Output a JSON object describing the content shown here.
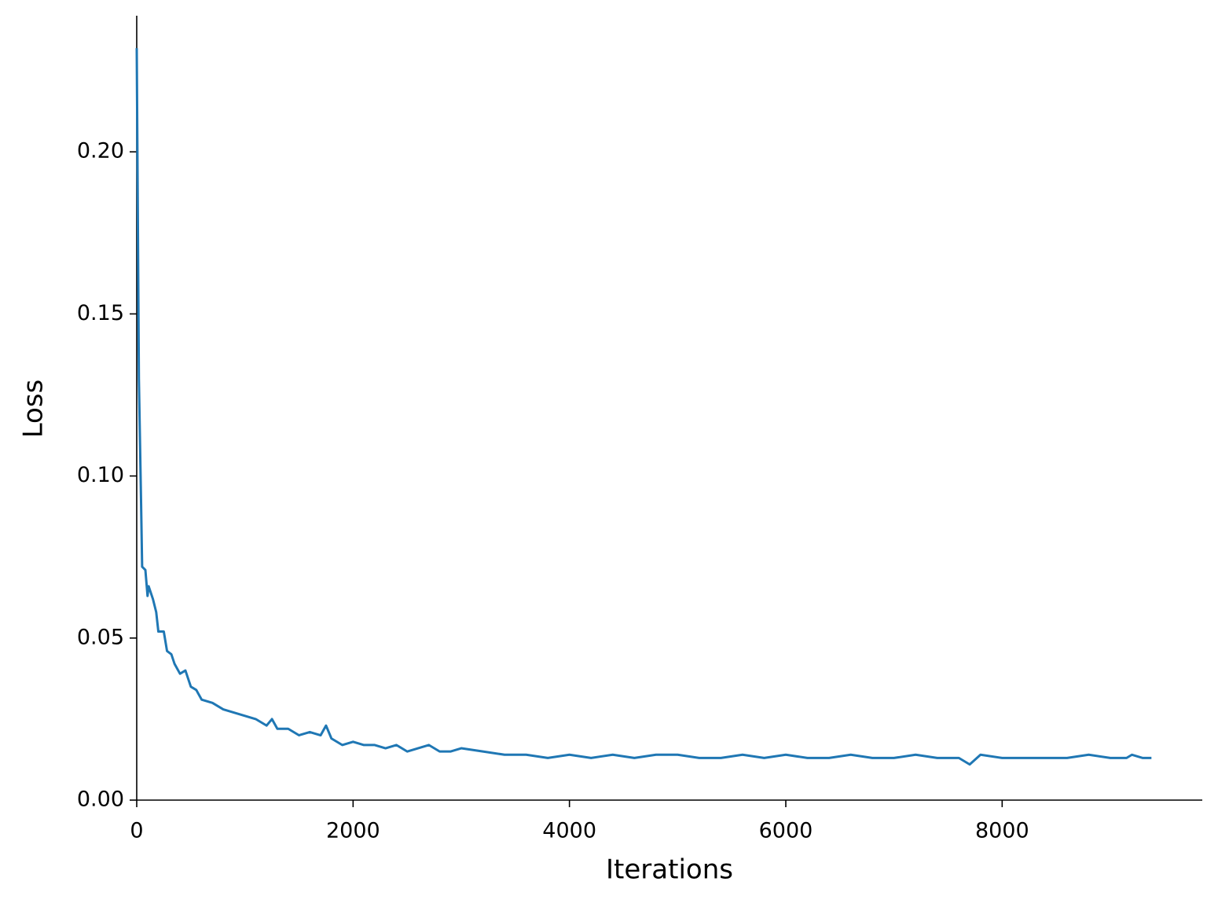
{
  "chart_data": {
    "type": "line",
    "x_label": "Iterations",
    "y_label": "Loss",
    "xlim": [
      0,
      9850
    ],
    "ylim": [
      0,
      0.242
    ],
    "xticks": [
      0,
      2000,
      4000,
      6000,
      8000
    ],
    "yticks": [
      {
        "value": 0,
        "label": "0.00"
      },
      0.05,
      {
        "value": 0.1,
        "label": "0.10"
      },
      0.15,
      {
        "value": 0.2,
        "label": "0.20"
      }
    ],
    "grid": false,
    "series": [
      {
        "name": "Loss",
        "color": "#1f77b4",
        "x": [
          0,
          20,
          40,
          50,
          80,
          100,
          110,
          150,
          180,
          200,
          250,
          280,
          320,
          350,
          400,
          450,
          500,
          550,
          600,
          700,
          800,
          900,
          1000,
          1100,
          1200,
          1250,
          1300,
          1400,
          1500,
          1600,
          1700,
          1750,
          1800,
          1900,
          2000,
          2100,
          2200,
          2300,
          2400,
          2500,
          2600,
          2700,
          2800,
          2900,
          3000,
          3200,
          3400,
          3600,
          3800,
          4000,
          4200,
          4400,
          4600,
          4800,
          5000,
          5200,
          5400,
          5600,
          5800,
          6000,
          6200,
          6400,
          6600,
          6800,
          7000,
          7200,
          7400,
          7600,
          7700,
          7800,
          8000,
          8200,
          8400,
          8600,
          8800,
          9000,
          9150,
          9200,
          9300,
          9380
        ],
        "values": [
          0.232,
          0.13,
          0.092,
          0.072,
          0.071,
          0.063,
          0.066,
          0.062,
          0.058,
          0.052,
          0.052,
          0.046,
          0.045,
          0.042,
          0.039,
          0.04,
          0.035,
          0.034,
          0.031,
          0.03,
          0.028,
          0.027,
          0.026,
          0.025,
          0.023,
          0.025,
          0.022,
          0.022,
          0.02,
          0.021,
          0.02,
          0.023,
          0.019,
          0.017,
          0.018,
          0.017,
          0.017,
          0.016,
          0.017,
          0.015,
          0.016,
          0.017,
          0.015,
          0.015,
          0.016,
          0.015,
          0.014,
          0.014,
          0.013,
          0.014,
          0.013,
          0.014,
          0.013,
          0.014,
          0.014,
          0.013,
          0.013,
          0.014,
          0.013,
          0.014,
          0.013,
          0.013,
          0.014,
          0.013,
          0.013,
          0.014,
          0.013,
          0.013,
          0.011,
          0.014,
          0.013,
          0.013,
          0.013,
          0.013,
          0.014,
          0.013,
          0.013,
          0.014,
          0.013,
          0.013
        ]
      }
    ]
  }
}
